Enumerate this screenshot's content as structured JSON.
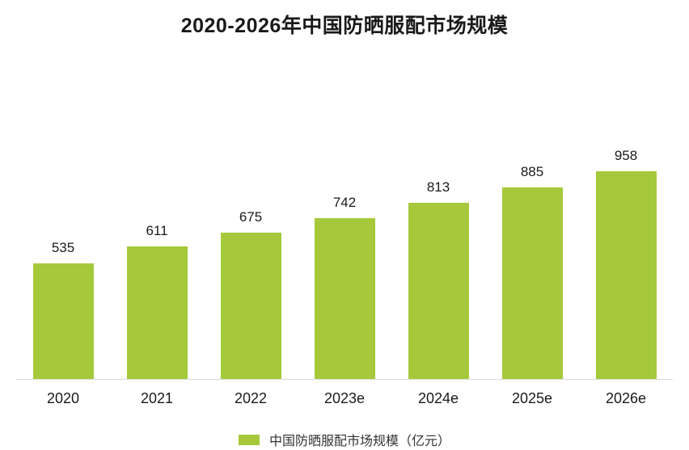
{
  "chart_data": {
    "type": "bar",
    "title": "2020-2026年中国防晒服配市场规模",
    "categories": [
      "2020",
      "2021",
      "2022",
      "2023e",
      "2024e",
      "2025e",
      "2026e"
    ],
    "values": [
      535,
      611,
      675,
      742,
      813,
      885,
      958
    ],
    "legend": "中国防晒服配市场规模（亿元）",
    "bar_color": "#a5c93a",
    "xlabel": "",
    "ylabel": "",
    "ylim": [
      0,
      1000
    ],
    "grid": false,
    "legend_position": "bottom"
  }
}
